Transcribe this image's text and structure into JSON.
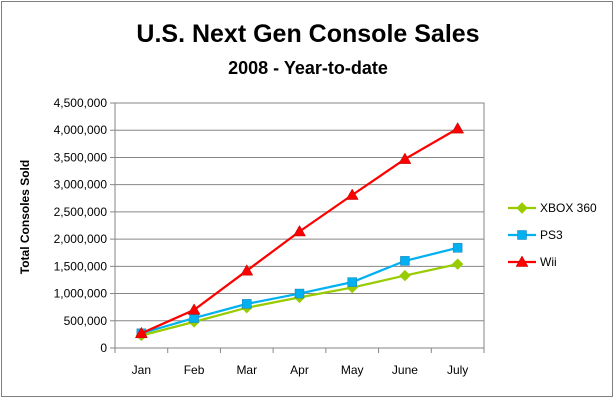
{
  "chart_data": {
    "type": "line",
    "title": "U.S. Next Gen Console Sales",
    "subtitle": "2008 - Year-to-date",
    "ylabel": "Total Consoles Sold",
    "categories": [
      "Jan",
      "Feb",
      "Mar",
      "Apr",
      "May",
      "June",
      "July"
    ],
    "ylim": [
      0,
      4500000
    ],
    "yticks": [
      "0",
      "500,000",
      "1,000,000",
      "1,500,000",
      "2,000,000",
      "2,500,000",
      "3,000,000",
      "3,500,000",
      "4,000,000",
      "4,500,000"
    ],
    "ytick_values": [
      0,
      500000,
      1000000,
      1500000,
      2000000,
      2500000,
      3000000,
      3500000,
      4000000,
      4500000
    ],
    "grid": true,
    "legend_position": "right",
    "series": [
      {
        "name": "XBOX 360",
        "color": "#99cc00",
        "marker": "diamond",
        "values": [
          230000,
          480000,
          740000,
          930000,
          1110000,
          1330000,
          1540000
        ]
      },
      {
        "name": "PS3",
        "color": "#00b0f0",
        "marker": "square",
        "values": [
          270000,
          550000,
          810000,
          1000000,
          1210000,
          1600000,
          1840000
        ]
      },
      {
        "name": "Wii",
        "color": "#ff0000",
        "marker": "triangle",
        "values": [
          270000,
          700000,
          1420000,
          2140000,
          2810000,
          3470000,
          4030000
        ]
      }
    ]
  }
}
